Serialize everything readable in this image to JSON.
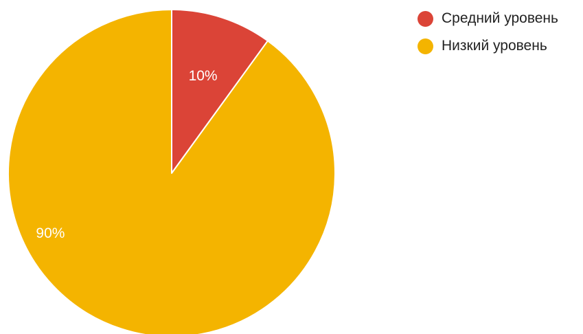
{
  "chart_data": {
    "type": "pie",
    "title": "",
    "categories": [
      "Средний уровень",
      "Низкий уровень"
    ],
    "values": [
      10,
      90
    ],
    "data_labels": [
      "10%",
      "90%"
    ],
    "colors": [
      "#DB4437",
      "#F4B400"
    ],
    "start_angle": "top",
    "direction": "clockwise",
    "legend_position": "top-right"
  },
  "legend": {
    "items": [
      {
        "label": "Средний уровень",
        "color": "#DB4437"
      },
      {
        "label": "Низкий уровень",
        "color": "#F4B400"
      }
    ]
  }
}
